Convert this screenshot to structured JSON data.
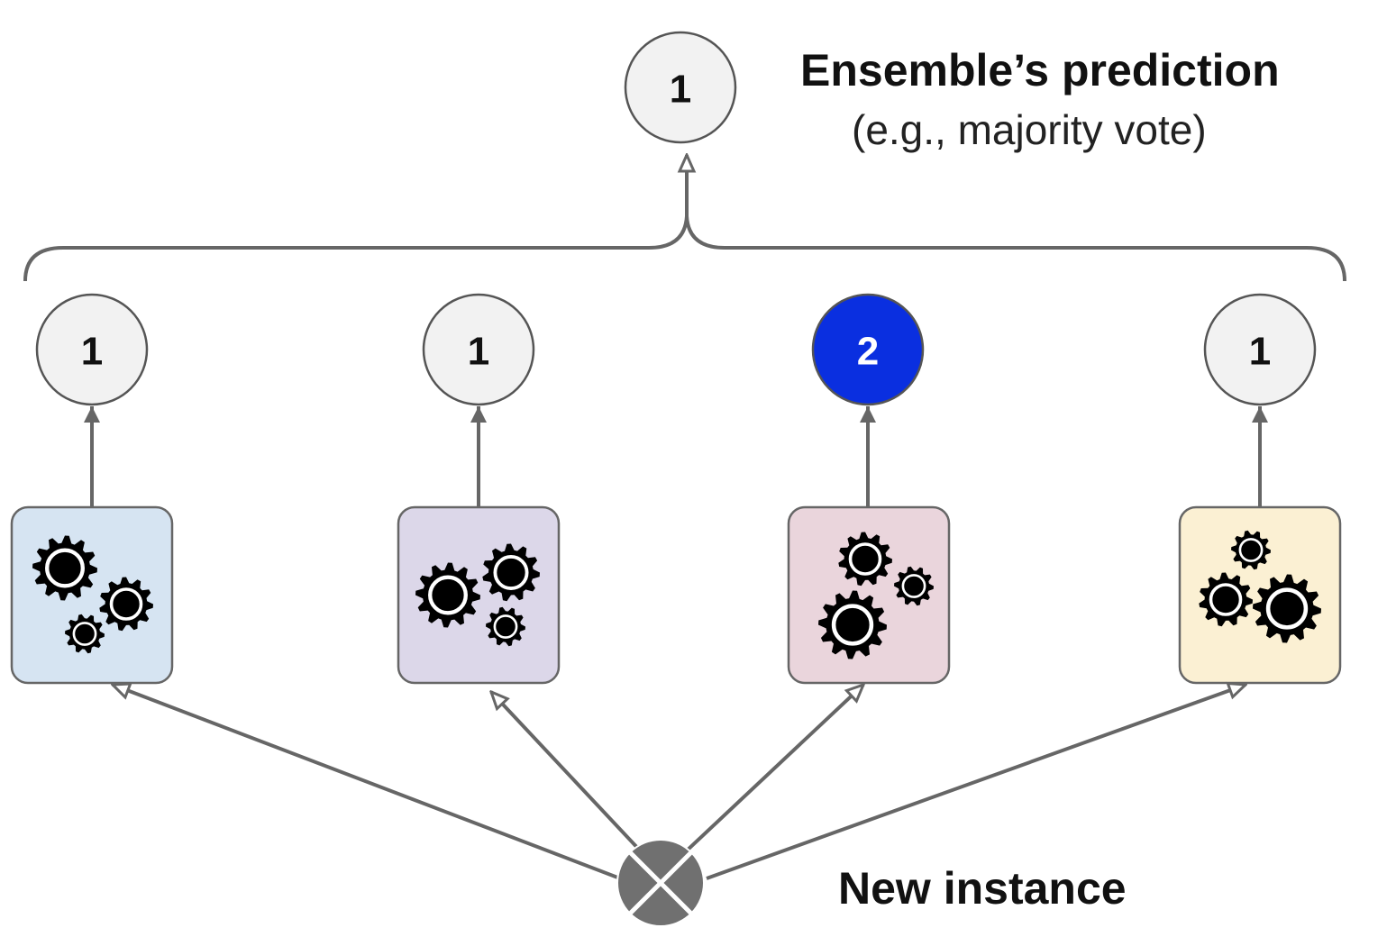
{
  "ensemble": {
    "prediction": "1",
    "title": "Ensemble’s prediction",
    "subtitle": "(e.g., majority vote)"
  },
  "predictors": [
    {
      "prediction": "1",
      "box_color": "#d6e4f2",
      "circle_color": "#f2f2f2",
      "text_color": "#111111"
    },
    {
      "prediction": "1",
      "box_color": "#dcd7e9",
      "circle_color": "#f2f2f2",
      "text_color": "#111111"
    },
    {
      "prediction": "2",
      "box_color": "#ead5dc",
      "circle_color": "#0a2fe0",
      "text_color": "#ffffff"
    },
    {
      "prediction": "1",
      "box_color": "#fbf0d3",
      "circle_color": "#f2f2f2",
      "text_color": "#111111"
    }
  ],
  "instance": {
    "label": "New instance",
    "icon": "new-instance-icon"
  },
  "icons": {
    "predictor": "gears-icon"
  }
}
